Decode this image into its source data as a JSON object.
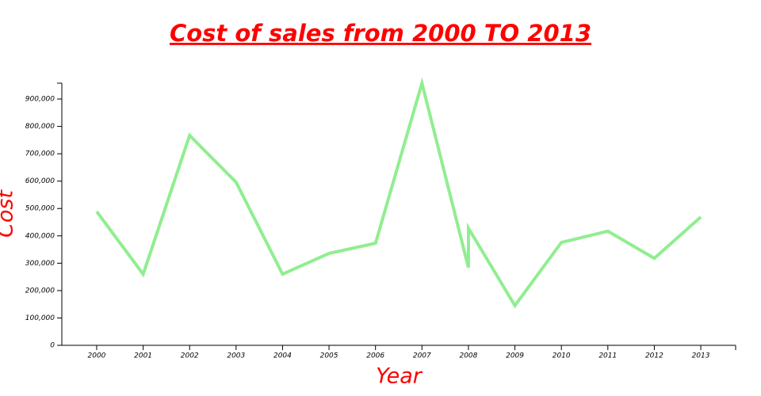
{
  "chart_data": {
    "type": "line",
    "title": "Cost of sales from 2000 TO 2013",
    "x_label": "Year",
    "y_label": "Cost",
    "x": [
      2000,
      2001,
      2002,
      2003,
      2004,
      2005,
      2006,
      2007,
      2008,
      2008,
      2009,
      2010,
      2011,
      2012,
      2013
    ],
    "values": [
      489000,
      260000,
      767000,
      596000,
      260000,
      336000,
      373000,
      958000,
      284000,
      428000,
      145000,
      376000,
      417000,
      318000,
      469000
    ],
    "color": "#90ee90",
    "xlim": [
      1999.25,
      2013.75
    ],
    "xticks": [
      2000,
      2001,
      2002,
      2003,
      2004,
      2005,
      2006,
      2007,
      2008,
      2009,
      2010,
      2011,
      2012,
      2013
    ],
    "ylim": [
      0,
      958000
    ],
    "yticks": [
      0,
      {
        "value": 100000,
        "label": "100,000"
      },
      {
        "value": 200000,
        "label": "200,000"
      },
      {
        "value": 300000,
        "label": "300,000"
      },
      {
        "value": 400000,
        "label": "400,000"
      },
      {
        "value": 500000,
        "label": "500,000"
      },
      {
        "value": 600000,
        "label": "600,000"
      },
      {
        "value": 700000,
        "label": "700,000"
      },
      {
        "value": 800000,
        "label": "800,000"
      },
      {
        "value": 900000,
        "label": "900,000"
      }
    ]
  }
}
